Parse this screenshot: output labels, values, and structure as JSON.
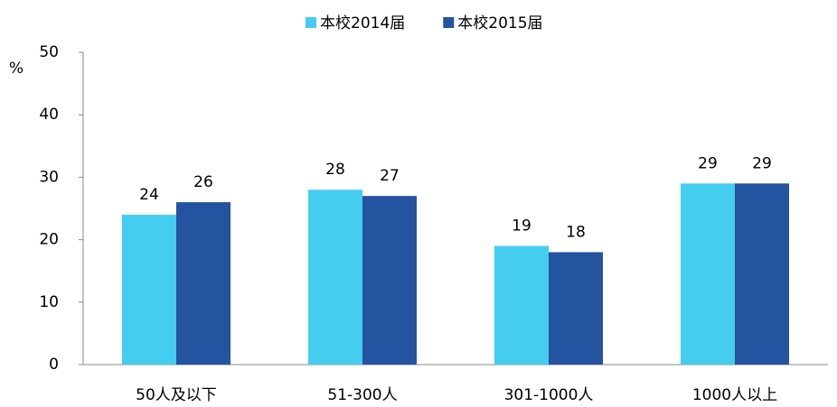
{
  "chart_data": {
    "type": "bar",
    "y_label": "%",
    "categories": [
      "50人及以下",
      "51-300人",
      "301-1000人",
      "1000人以上"
    ],
    "series": [
      {
        "name": "本校2014届",
        "color": "#45cdf0",
        "values": [
          24,
          28,
          19,
          29
        ]
      },
      {
        "name": "本校2015届",
        "color": "#2453a0",
        "values": [
          26,
          27,
          18,
          29
        ]
      }
    ],
    "ylim": [
      0,
      50
    ],
    "yticks": [
      0,
      10,
      20,
      30,
      40,
      50
    ],
    "grid": false,
    "legend": "top"
  }
}
